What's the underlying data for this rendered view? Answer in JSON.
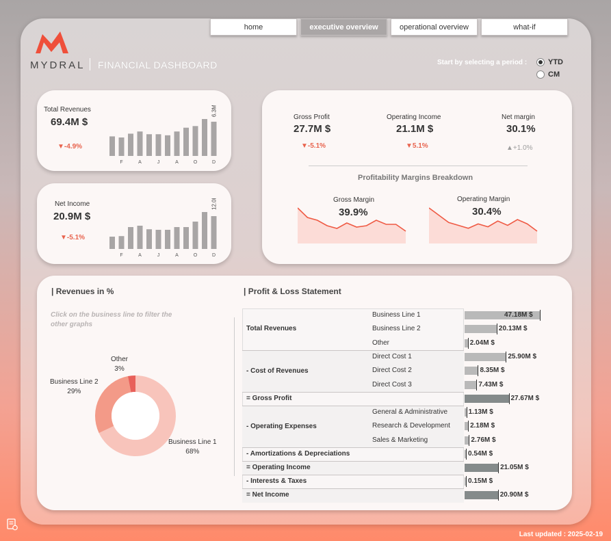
{
  "nav": {
    "tabs": [
      {
        "label": "home"
      },
      {
        "label": "executive overview"
      },
      {
        "label": "operational overview"
      },
      {
        "label": "what-if"
      }
    ],
    "active_index": 1
  },
  "brand": {
    "name": "MYDRAL",
    "title": "FINANCIAL DASHBOARD",
    "logo_color": "#ef4f3a"
  },
  "period": {
    "label": "Start by selecting a period :",
    "options": [
      "YTD",
      "CM"
    ],
    "selected": "YTD"
  },
  "kpi_revenue": {
    "title": "Total Revenues",
    "value": "69.4M $",
    "delta": "▼-4.9%",
    "chart_data": {
      "type": "bar",
      "categories": [
        "",
        "F",
        "",
        "A",
        "",
        "J",
        "",
        "A",
        "",
        "O",
        "",
        "D"
      ],
      "values": [
        3.6,
        3.4,
        4.1,
        4.5,
        4.0,
        4.0,
        3.8,
        4.5,
        5.2,
        5.5,
        6.8,
        6.3
      ],
      "last_label": "6.3M$"
    }
  },
  "kpi_net": {
    "title": "Net Income",
    "value": "20.9M $",
    "delta": "▼-5.1%",
    "chart_data": {
      "type": "bar",
      "categories": [
        "",
        "F",
        "",
        "A",
        "",
        "J",
        "",
        "A",
        "",
        "O",
        "",
        "D"
      ],
      "values": [
        4.5,
        4.7,
        8.0,
        8.5,
        7.2,
        7.0,
        7.0,
        8.0,
        8.0,
        10.0,
        13.5,
        12.0
      ],
      "last_label": "12.0M$"
    }
  },
  "profit": {
    "gross": {
      "title": "Gross Profit",
      "value": "27.7M $",
      "delta": "▼-5.1%"
    },
    "operating": {
      "title": "Operating Income",
      "value": "21.1M $",
      "delta": "▼5.1%"
    },
    "margin": {
      "title": "Net margin",
      "value": "30.1%",
      "delta": "▲+1.0%"
    },
    "breakdown_title": "Profitability Margins Breakdown",
    "gross_margin": {
      "title": "Gross Margin",
      "value": "39.9%",
      "chart_data": {
        "type": "area",
        "values": [
          40.8,
          40.1,
          39.9,
          39.5,
          39.3,
          39.7,
          39.4,
          39.5,
          39.9,
          39.6,
          39.6,
          39.1
        ]
      }
    },
    "operating_margin": {
      "title": "Operating Margin",
      "value": "30.4%",
      "chart_data": {
        "type": "area",
        "values": [
          31.5,
          31.0,
          30.5,
          30.3,
          30.1,
          30.4,
          30.2,
          30.6,
          30.3,
          30.7,
          30.4,
          29.9
        ]
      }
    }
  },
  "revenues_pct": {
    "title": "| Revenues in %",
    "hint": "Click on the business line to filter the other graphs",
    "chart_data": {
      "type": "pie",
      "labels": [
        "Business Line 1",
        "Business Line 2",
        "Other"
      ],
      "values": [
        68,
        29,
        3
      ],
      "colors": [
        "#f8c4bb",
        "#f39a88",
        "#e8605a"
      ]
    },
    "labels": {
      "bl1": "Business Line 1",
      "bl1_pct": "68%",
      "bl2": "Business Line 2",
      "bl2_pct": "29%",
      "other": "Other",
      "other_pct": "3%"
    }
  },
  "pl": {
    "title": "| Profit & Loss Statement",
    "groups": [
      {
        "label": "Total Revenues"
      },
      {
        "label": "- Cost of Revenues"
      },
      {
        "label": "= Gross Profit"
      },
      {
        "label": "- Operating Expenses"
      },
      {
        "label": "- Amortizations & Depreciations"
      },
      {
        "label": "= Operating Income"
      },
      {
        "label": "- Interests & Taxes"
      },
      {
        "label": "= Net Income"
      }
    ],
    "rows": [
      {
        "item": "Business Line 1",
        "value": 47.18,
        "label": "47.18M $"
      },
      {
        "item": "Business Line 2",
        "value": 20.13,
        "label": "20.13M $"
      },
      {
        "item": "Other",
        "value": 2.04,
        "label": "2.04M $"
      },
      {
        "item": "Direct Cost 1",
        "value": 25.9,
        "label": "25.90M $"
      },
      {
        "item": "Direct Cost 2",
        "value": 8.35,
        "label": "8.35M $"
      },
      {
        "item": "Direct Cost 3",
        "value": 7.43,
        "label": "7.43M $"
      },
      {
        "item": "",
        "value": 27.67,
        "label": "27.67M $"
      },
      {
        "item": "General & Administrative",
        "value": 1.13,
        "label": "1.13M $"
      },
      {
        "item": "Research & Development",
        "value": 2.18,
        "label": "2.18M $"
      },
      {
        "item": "Sales & Marketing",
        "value": 2.76,
        "label": "2.76M $"
      },
      {
        "item": "",
        "value": 0.54,
        "label": "0.54M $"
      },
      {
        "item": "",
        "value": 21.05,
        "label": "21.05M $"
      },
      {
        "item": "",
        "value": 0.15,
        "label": "0.15M $"
      },
      {
        "item": "",
        "value": 20.9,
        "label": "20.90M $"
      }
    ]
  },
  "footer": {
    "updated": "Last updated : 2025-02-19"
  }
}
